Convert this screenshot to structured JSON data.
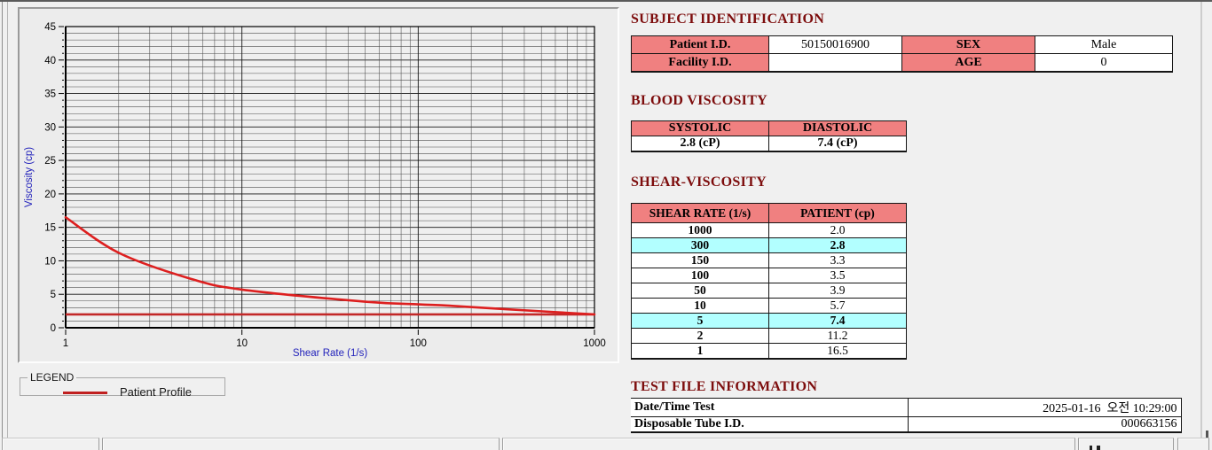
{
  "legend": {
    "title": "LEGEND",
    "entries": [
      {
        "label": "Patient Profile",
        "color": "#c02020"
      }
    ]
  },
  "chart_data": {
    "type": "line",
    "title": "",
    "xlabel": "Shear Rate (1/s)",
    "ylabel": "Viscosity (cp)",
    "x_scale": "log",
    "xlim": [
      1,
      1000
    ],
    "ylim": [
      0,
      45
    ],
    "x_ticks": [
      1,
      10,
      100,
      1000
    ],
    "y_tick_step": 5,
    "y_minor_step": 1,
    "grid": "on",
    "axis_label_color": "#2323bb",
    "series": [
      {
        "name": "Patient Profile",
        "color": "#dd1f1f",
        "x": [
          1,
          2,
          5,
          10,
          50,
          100,
          150,
          300,
          1000
        ],
        "y": [
          16.5,
          11.2,
          7.4,
          5.7,
          3.9,
          3.5,
          3.3,
          2.8,
          2.0
        ]
      },
      {
        "name": "reference-line",
        "color": "#c22828",
        "y_const": 2.0
      }
    ]
  },
  "subject_identification": {
    "title": "SUBJECT IDENTIFICATION",
    "rows": [
      {
        "label1": "Patient I.D.",
        "value1": "50150016900",
        "label2": "SEX",
        "value2": "Male"
      },
      {
        "label1": "Facility I.D.",
        "value1": "",
        "label2": "AGE",
        "value2": "0"
      }
    ]
  },
  "blood_viscosity": {
    "title": "BLOOD VISCOSITY",
    "headers": [
      "SYSTOLIC",
      "DIASTOLIC"
    ],
    "values": [
      "2.8 (cP)",
      "7.4 (cP)"
    ]
  },
  "shear_viscosity": {
    "title": "SHEAR-VISCOSITY",
    "headers": [
      "SHEAR RATE (1/s)",
      "PATIENT (cp)"
    ],
    "highlight_color": "#b2ffff",
    "rows": [
      {
        "rate": "1000",
        "value": "2.0",
        "highlight": false
      },
      {
        "rate": "300",
        "value": "2.8",
        "highlight": true
      },
      {
        "rate": "150",
        "value": "3.3",
        "highlight": false
      },
      {
        "rate": "100",
        "value": "3.5",
        "highlight": false
      },
      {
        "rate": "50",
        "value": "3.9",
        "highlight": false
      },
      {
        "rate": "10",
        "value": "5.7",
        "highlight": false
      },
      {
        "rate": "5",
        "value": "7.4",
        "highlight": true
      },
      {
        "rate": "2",
        "value": "11.2",
        "highlight": false
      },
      {
        "rate": "1",
        "value": "16.5",
        "highlight": false
      }
    ]
  },
  "test_file_information": {
    "title": "TEST FILE INFORMATION",
    "rows": [
      {
        "label": "Date/Time Test",
        "value": "2025-01-16  오전 10:29:00"
      },
      {
        "label": "Disposable Tube I.D.",
        "value": "000663156"
      }
    ]
  },
  "colors": {
    "section_title": "#7d0d0d",
    "table_header_bg": "#f08080",
    "highlight_bg": "#b2ffff",
    "curve": "#dd1f1f",
    "reference_line": "#c22828",
    "axis_label": "#2323bb"
  }
}
